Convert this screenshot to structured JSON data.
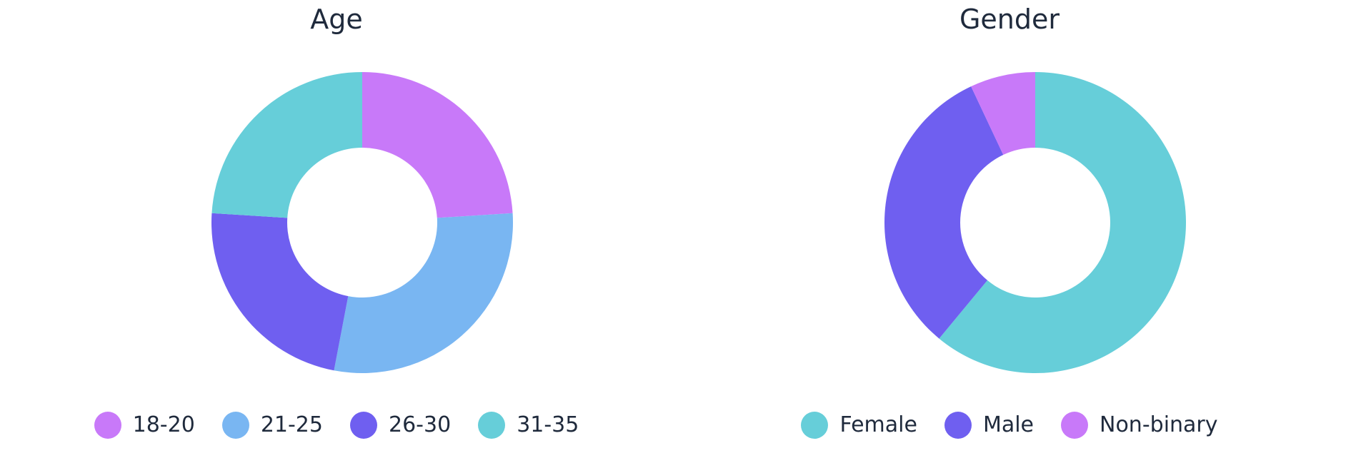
{
  "chart_data": [
    {
      "type": "pie",
      "title": "Age",
      "categories": [
        "18-20",
        "21-25",
        "26-30",
        "31-35"
      ],
      "values": [
        24,
        29,
        23,
        24
      ],
      "colors": [
        "#c879f9",
        "#79b6f2",
        "#6f5ff0",
        "#66ced9"
      ],
      "legend": "bottom",
      "donut": true
    },
    {
      "type": "pie",
      "title": "Gender",
      "categories": [
        "Female",
        "Male",
        "Non-binary"
      ],
      "values": [
        61,
        32,
        7
      ],
      "colors": [
        "#66ced9",
        "#6f5ff0",
        "#c879f9"
      ],
      "legend": "bottom",
      "donut": true
    }
  ]
}
